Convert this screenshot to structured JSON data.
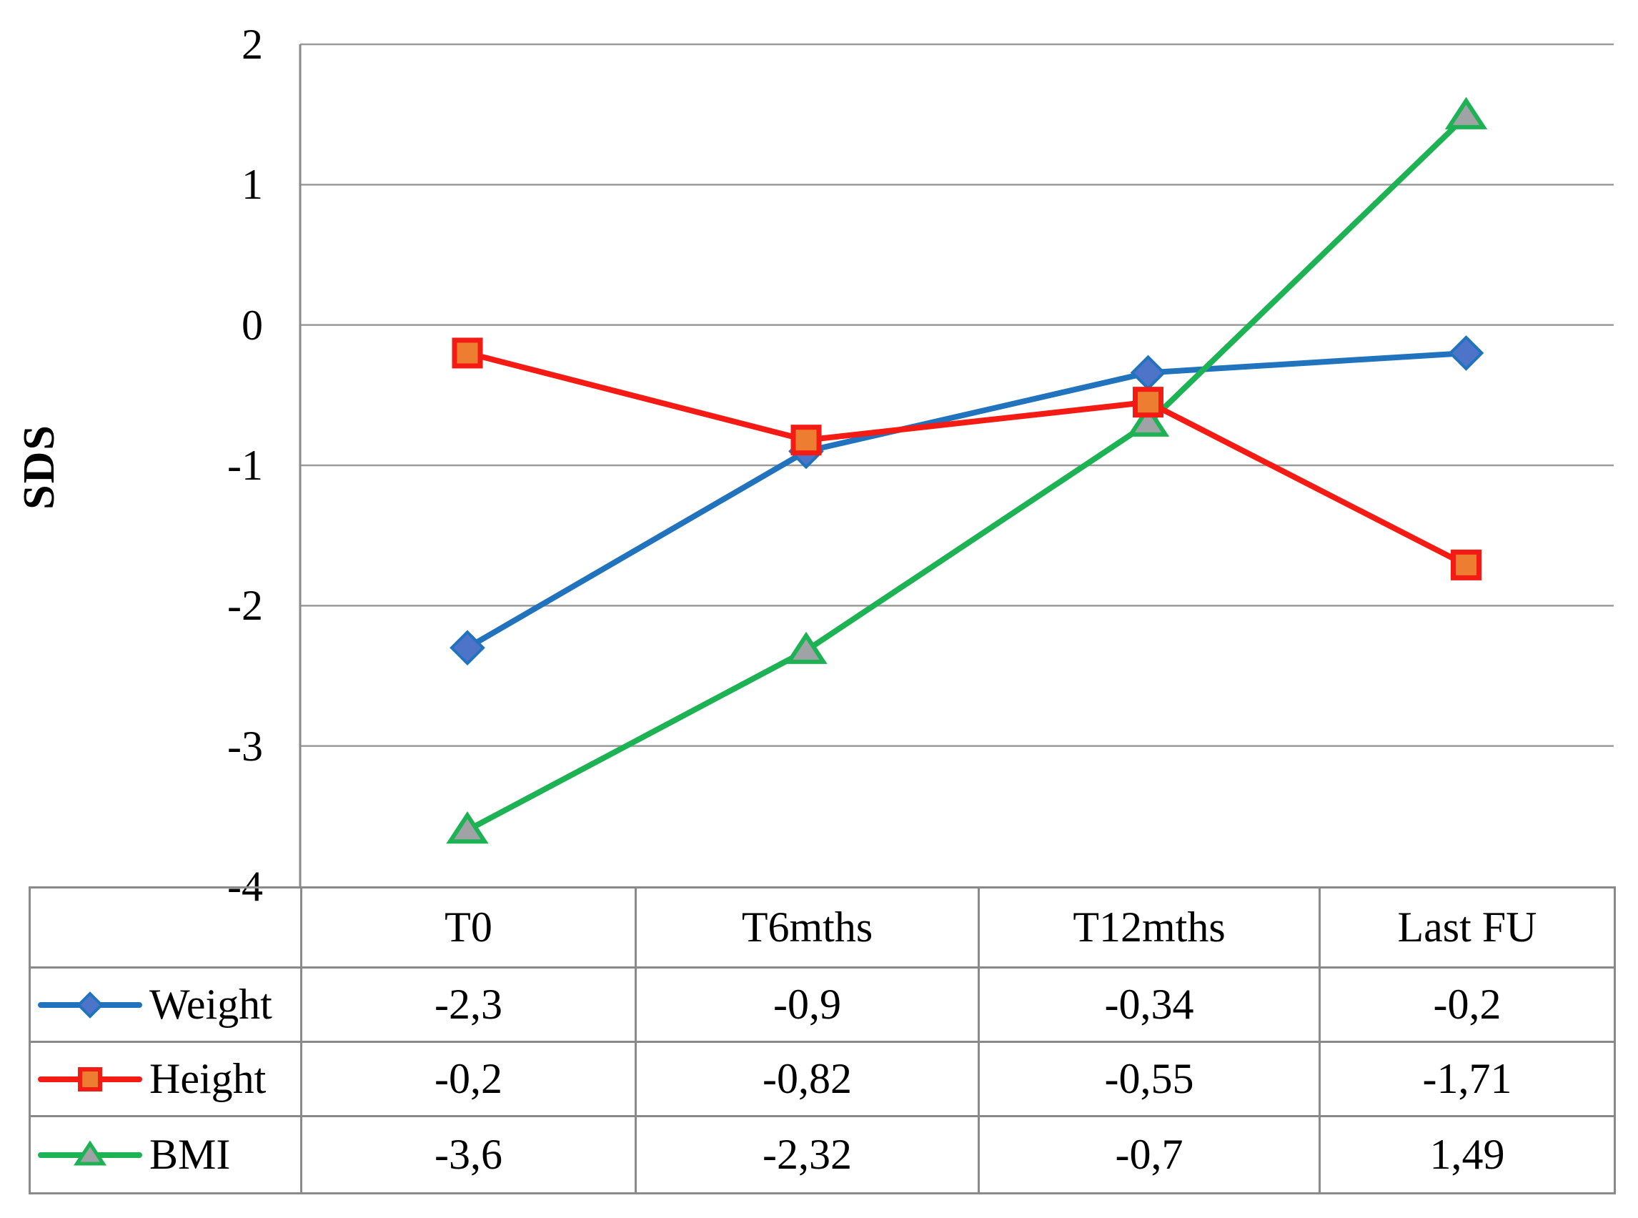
{
  "chart": {
    "y_axis_title": "SDS",
    "y_tick_labels": [
      "2",
      "1",
      "0",
      "-1",
      "-2",
      "-3",
      "-4"
    ],
    "colors": {
      "gridline": "#9a9a9a",
      "axis": "#8a8a8a",
      "table_border": "#8a8a8a",
      "text": "#000000"
    }
  },
  "chart_data": {
    "type": "line",
    "title": "",
    "ylabel": "SDS",
    "xlabel": "",
    "categories": [
      "T0",
      "T6mths",
      "T12mths",
      "Last FU"
    ],
    "ylim": [
      -4,
      2
    ],
    "y_tick_step": 1,
    "grid": true,
    "legend_position": "left-of-table-rows",
    "draw_order": [
      0,
      2,
      1
    ],
    "series": [
      {
        "name": "Weight",
        "values": [
          -2.3,
          -0.9,
          -0.34,
          -0.2
        ],
        "display_values": [
          "-2,3",
          "-0,9",
          "-0,34",
          "-0,2"
        ],
        "line_color": "#2173bd",
        "marker": "diamond",
        "marker_fill": "#4d74c9",
        "marker_stroke": "#2173bd"
      },
      {
        "name": "Height",
        "values": [
          -0.2,
          -0.82,
          -0.55,
          -1.71
        ],
        "display_values": [
          "-0,2",
          "-0,82",
          "-0,55",
          "-1,71"
        ],
        "line_color": "#f41b15",
        "marker": "square",
        "marker_fill": "#ed7d31",
        "marker_stroke": "#f41b15"
      },
      {
        "name": "BMI",
        "values": [
          -3.6,
          -2.32,
          -0.7,
          1.49
        ],
        "display_values": [
          "-3,6",
          "-2,32",
          "-0,7",
          "1,49"
        ],
        "line_color": "#1db254",
        "marker": "triangle",
        "marker_fill": "#a0a3a6",
        "marker_stroke": "#1db254"
      }
    ]
  }
}
